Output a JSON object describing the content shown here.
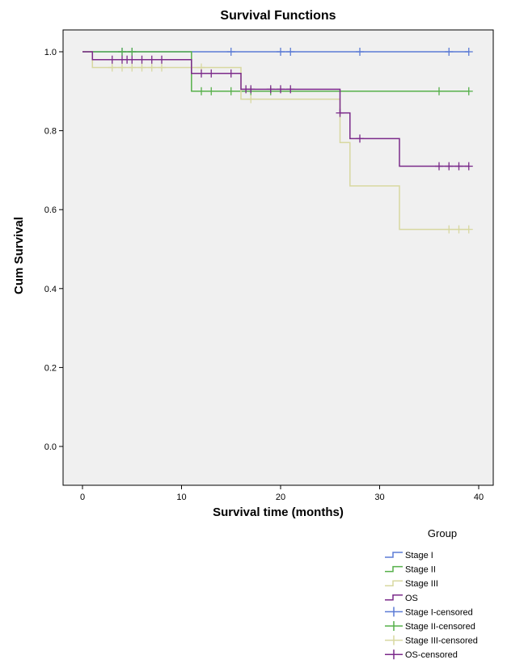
{
  "chart_data": {
    "type": "line",
    "subtype": "kaplan-meier step",
    "title": "Survival Functions",
    "xlabel": "Survival time (months)",
    "ylabel": "Cum Survival",
    "xlim": [
      0,
      40
    ],
    "ylim": [
      0.0,
      1.0
    ],
    "xticks": [
      0,
      10,
      20,
      30,
      40
    ],
    "yticks": [
      0.0,
      0.2,
      0.4,
      0.6,
      0.8,
      1.0
    ],
    "xtick_labels": [
      "0",
      "10",
      "20",
      "30",
      "40"
    ],
    "ytick_labels": [
      "0.0",
      "0.2",
      "0.4",
      "0.6",
      "0.8",
      "1.0"
    ],
    "plot_background": "#f0f0f0",
    "legend": {
      "title": "Group",
      "position": "bottom-right, below plot",
      "entries": [
        "Stage I",
        "Stage II",
        "Stage III",
        "OS",
        "Stage I-censored",
        "Stage II-censored",
        "Stage III-censored",
        "OS-censored"
      ]
    },
    "series": [
      {
        "name": "Stage I",
        "color": "#5b7bd5",
        "steps": [
          [
            0,
            1.0
          ],
          [
            39,
            1.0
          ]
        ],
        "censored": [
          [
            4,
            1.0
          ],
          [
            5,
            1.0
          ],
          [
            15,
            1.0
          ],
          [
            20,
            1.0
          ],
          [
            21,
            1.0
          ],
          [
            28,
            1.0
          ],
          [
            37,
            1.0
          ],
          [
            39,
            1.0
          ]
        ]
      },
      {
        "name": "Stage II",
        "color": "#56b04a",
        "steps": [
          [
            0,
            1.0
          ],
          [
            11,
            1.0
          ],
          [
            11,
            0.9
          ],
          [
            39,
            0.9
          ]
        ],
        "censored": [
          [
            4,
            1.0
          ],
          [
            5,
            1.0
          ],
          [
            12,
            0.9
          ],
          [
            13,
            0.9
          ],
          [
            15,
            0.9
          ],
          [
            17,
            0.9
          ],
          [
            19,
            0.9
          ],
          [
            36,
            0.9
          ],
          [
            39,
            0.9
          ]
        ]
      },
      {
        "name": "Stage III",
        "color": "#d8d8a0",
        "steps": [
          [
            0,
            1.0
          ],
          [
            1,
            1.0
          ],
          [
            1,
            0.96
          ],
          [
            11,
            0.96
          ],
          [
            16,
            0.96
          ],
          [
            16,
            0.88
          ],
          [
            26,
            0.88
          ],
          [
            26,
            0.77
          ],
          [
            27,
            0.77
          ],
          [
            27,
            0.66
          ],
          [
            32,
            0.66
          ],
          [
            32,
            0.55
          ],
          [
            39,
            0.55
          ]
        ],
        "censored": [
          [
            3,
            0.96
          ],
          [
            4,
            0.96
          ],
          [
            5,
            0.96
          ],
          [
            6,
            0.96
          ],
          [
            7,
            0.96
          ],
          [
            8,
            0.96
          ],
          [
            12,
            0.96
          ],
          [
            17,
            0.88
          ],
          [
            37,
            0.55
          ],
          [
            38,
            0.55
          ],
          [
            39,
            0.55
          ]
        ]
      },
      {
        "name": "OS",
        "color": "#7b2a8a",
        "steps": [
          [
            0,
            1.0
          ],
          [
            1,
            1.0
          ],
          [
            1,
            0.98
          ],
          [
            11,
            0.98
          ],
          [
            11,
            0.945
          ],
          [
            16,
            0.945
          ],
          [
            16,
            0.905
          ],
          [
            26,
            0.905
          ],
          [
            26,
            0.845
          ],
          [
            27,
            0.845
          ],
          [
            27,
            0.78
          ],
          [
            32,
            0.78
          ],
          [
            32,
            0.71
          ],
          [
            39,
            0.71
          ]
        ],
        "censored": [
          [
            3,
            0.98
          ],
          [
            4,
            0.98
          ],
          [
            4.5,
            0.98
          ],
          [
            5,
            0.98
          ],
          [
            6,
            0.98
          ],
          [
            7,
            0.98
          ],
          [
            8,
            0.98
          ],
          [
            12,
            0.945
          ],
          [
            13,
            0.945
          ],
          [
            15,
            0.945
          ],
          [
            16.5,
            0.905
          ],
          [
            17,
            0.905
          ],
          [
            19,
            0.905
          ],
          [
            20,
            0.905
          ],
          [
            21,
            0.905
          ],
          [
            26,
            0.845
          ],
          [
            28,
            0.78
          ],
          [
            36,
            0.71
          ],
          [
            37,
            0.71
          ],
          [
            38,
            0.71
          ],
          [
            39,
            0.71
          ]
        ]
      }
    ]
  }
}
